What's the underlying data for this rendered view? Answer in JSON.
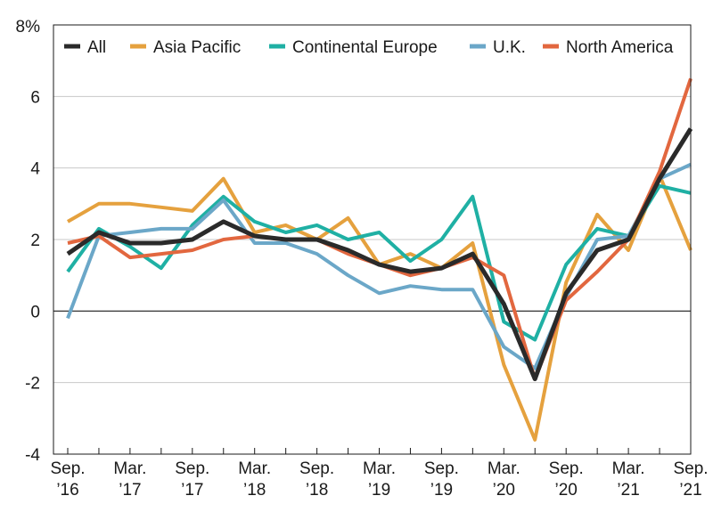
{
  "chart_data": {
    "type": "line",
    "y_unit_top_label": "8%",
    "ylim": [
      -4,
      8
    ],
    "yticks": [
      -4,
      -2,
      0,
      2,
      4,
      6
    ],
    "ytick_labels": [
      "-4",
      "-2",
      "0",
      "2",
      "4",
      "6"
    ],
    "grid": "horizontal",
    "legend_placement": "top",
    "x_labels": [
      {
        "line1": "Sep.",
        "line2": "’16",
        "index": 0
      },
      {
        "line1": "Mar.",
        "line2": "’17",
        "index": 2
      },
      {
        "line1": "Sep.",
        "line2": "’17",
        "index": 4
      },
      {
        "line1": "Mar.",
        "line2": "’18",
        "index": 6
      },
      {
        "line1": "Sep.",
        "line2": "’18",
        "index": 8
      },
      {
        "line1": "Mar.",
        "line2": "’19",
        "index": 10
      },
      {
        "line1": "Sep.",
        "line2": "’19",
        "index": 12
      },
      {
        "line1": "Mar.",
        "line2": "’20",
        "index": 14
      },
      {
        "line1": "Sep.",
        "line2": "’20",
        "index": 16
      },
      {
        "line1": "Mar.",
        "line2": "’21",
        "index": 18
      },
      {
        "line1": "Sep.",
        "line2": "’21",
        "index": 20
      }
    ],
    "series": [
      {
        "name": "Asia Pacific",
        "color": "#e5a13e",
        "values": [
          2.5,
          3.0,
          3.0,
          2.9,
          2.8,
          3.7,
          2.2,
          2.4,
          2.0,
          2.6,
          1.3,
          1.6,
          1.2,
          1.9,
          -1.5,
          -3.6,
          0.8,
          2.7,
          1.7,
          3.8,
          1.7
        ]
      },
      {
        "name": "Continental Europe",
        "color": "#1fb0a4",
        "values": [
          1.1,
          2.3,
          1.8,
          1.2,
          2.4,
          3.2,
          2.5,
          2.2,
          2.4,
          2.0,
          2.2,
          1.4,
          2.0,
          3.2,
          -0.3,
          -0.8,
          1.3,
          2.3,
          2.1,
          3.5,
          3.3
        ]
      },
      {
        "name": "U.K.",
        "color": "#6ba7c8",
        "values": [
          -0.2,
          2.1,
          2.2,
          2.3,
          2.3,
          3.1,
          1.9,
          1.9,
          1.6,
          1.0,
          0.5,
          0.7,
          0.6,
          0.6,
          -1.0,
          -1.6,
          0.4,
          2.0,
          2.1,
          3.7,
          4.1
        ]
      },
      {
        "name": "North America",
        "color": "#e2673f",
        "values": [
          1.9,
          2.1,
          1.5,
          1.6,
          1.7,
          2.0,
          2.1,
          2.0,
          2.0,
          1.6,
          1.3,
          1.0,
          1.2,
          1.5,
          1.0,
          -1.9,
          0.3,
          1.1,
          2.0,
          3.9,
          6.5
        ]
      },
      {
        "name": "All",
        "color": "#2a2a2a",
        "values": [
          1.6,
          2.2,
          1.9,
          1.9,
          2.0,
          2.5,
          2.1,
          2.0,
          2.0,
          1.7,
          1.3,
          1.1,
          1.2,
          1.6,
          0.2,
          -1.9,
          0.5,
          1.7,
          2.0,
          3.7,
          5.1
        ]
      }
    ],
    "legend": [
      {
        "name": "All",
        "color": "#2a2a2a"
      },
      {
        "name": "Asia Pacific",
        "color": "#e5a13e"
      },
      {
        "name": "Continental Europe",
        "color": "#1fb0a4"
      },
      {
        "name": "U.K.",
        "color": "#6ba7c8"
      },
      {
        "name": "North America",
        "color": "#e2673f"
      }
    ]
  }
}
